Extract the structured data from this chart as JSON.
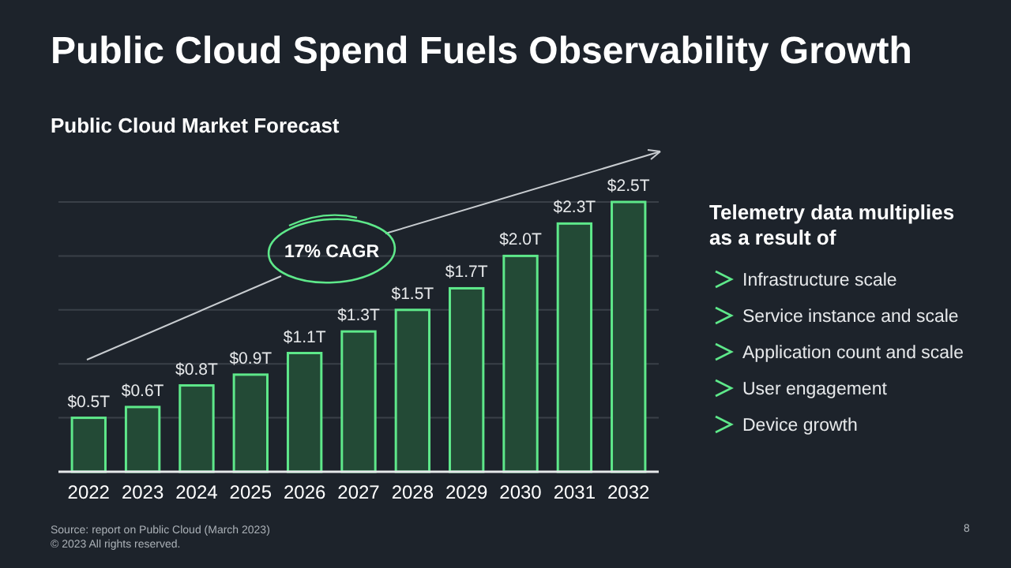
{
  "chart_data": {
    "type": "bar",
    "title": "Public Cloud Spend Fuels Observability Growth",
    "subtitle": "Public Cloud Market Forecast",
    "categories": [
      "2022",
      "2023",
      "2024",
      "2025",
      "2026",
      "2027",
      "2028",
      "2029",
      "2030",
      "2031",
      "2032"
    ],
    "series": [
      {
        "color": "#234a36",
        "values": [
          0.5,
          0.6,
          0.8,
          0.9,
          1.1,
          1.3,
          1.5,
          1.7,
          2.0,
          2.3,
          2.5
        ],
        "value_labels": [
          "$0.5T",
          "$0.6T",
          "$0.8T",
          "$0.9T",
          "$1.1T",
          "$1.3T",
          "$1.5T",
          "$1.7T",
          "$2.0T",
          "$2.3T",
          "$2.5T"
        ]
      }
    ],
    "ylim": [
      0,
      2.5
    ],
    "yticks": [
      {
        "value": 0.5,
        "label": null
      },
      {
        "value": 1,
        "label": null
      },
      {
        "value": 1.5,
        "label": null
      },
      {
        "value": 2,
        "label": null
      },
      {
        "value": 2.5,
        "label": null
      }
    ],
    "tick_labels": "x",
    "grid": "y",
    "annotations": [
      "17% CAGR",
      "Telemetry data multiplies as a result of",
      "Infrastructure scale",
      "Service instance and scale",
      "Application count and scale",
      "User engagement",
      "Device growth",
      "Source: report on Public Cloud (March 2023)",
      "© 2023 All rights reserved.",
      "8"
    ]
  }
}
